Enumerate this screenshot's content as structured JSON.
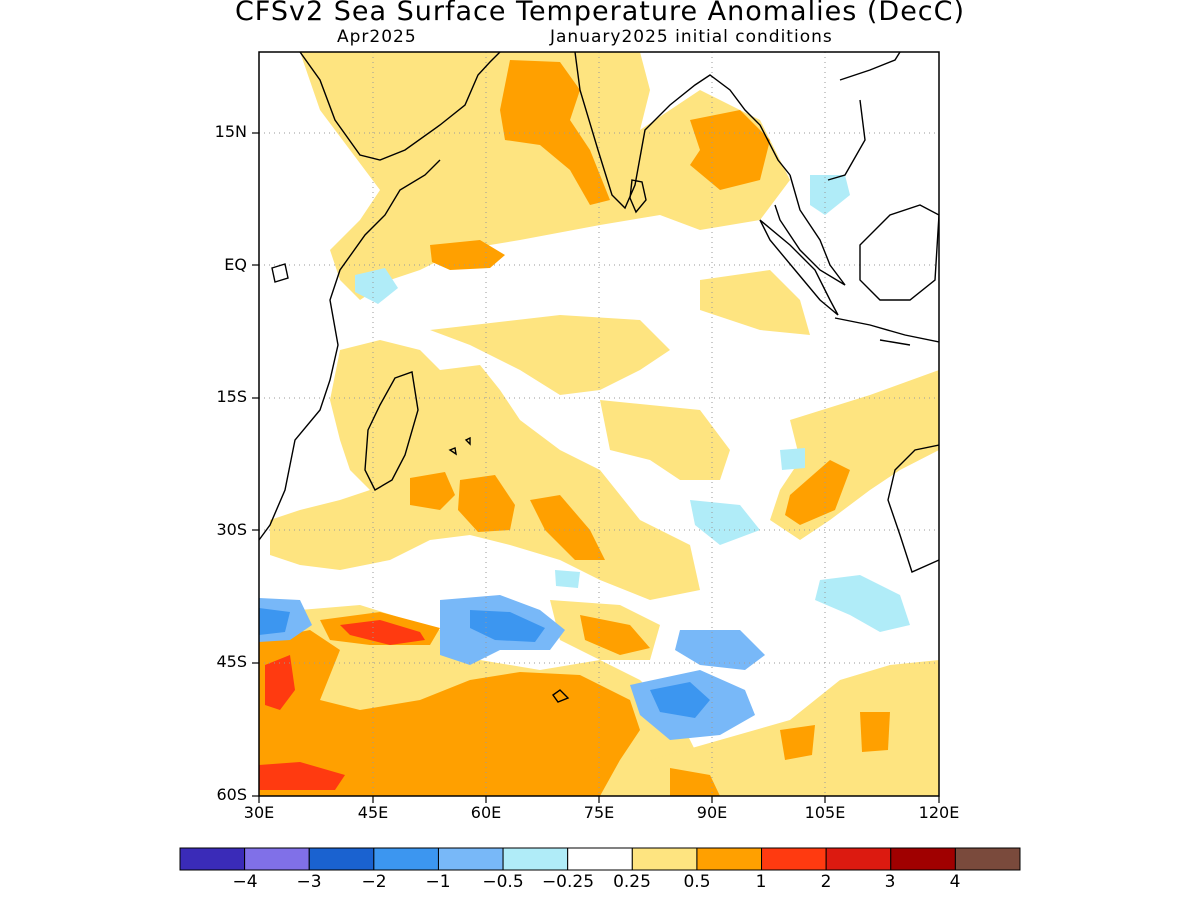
{
  "title": "CFSv2 Sea Surface Temperature Anomalies (DecC)",
  "subtitle_left": "Apr2025",
  "subtitle_right": "January2025 initial conditions",
  "lat_ticks": [
    "15N",
    "EQ",
    "15S",
    "30S",
    "45S",
    "60S"
  ],
  "lon_ticks": [
    "30E",
    "45E",
    "60E",
    "75E",
    "90E",
    "105E",
    "120E"
  ],
  "colorbar": {
    "colors": [
      "#3a2bb8",
      "#8070e8",
      "#1a62d0",
      "#3c96f0",
      "#78b8f8",
      "#b0ecf8",
      "#ffffff",
      "#fee480",
      "#ffa000",
      "#ff3a10",
      "#dc1a10",
      "#a00000",
      "#7a4a3c"
    ],
    "labels": [
      "−4",
      "−3",
      "−2",
      "−1",
      "−0.5",
      "−0.25",
      "0.25",
      "0.5",
      "1",
      "2",
      "3",
      "4"
    ]
  },
  "map_data": {
    "lon_range": [
      30,
      120
    ],
    "lat_range": [
      -60,
      24
    ],
    "grid": "dotted every 15 degrees"
  }
}
